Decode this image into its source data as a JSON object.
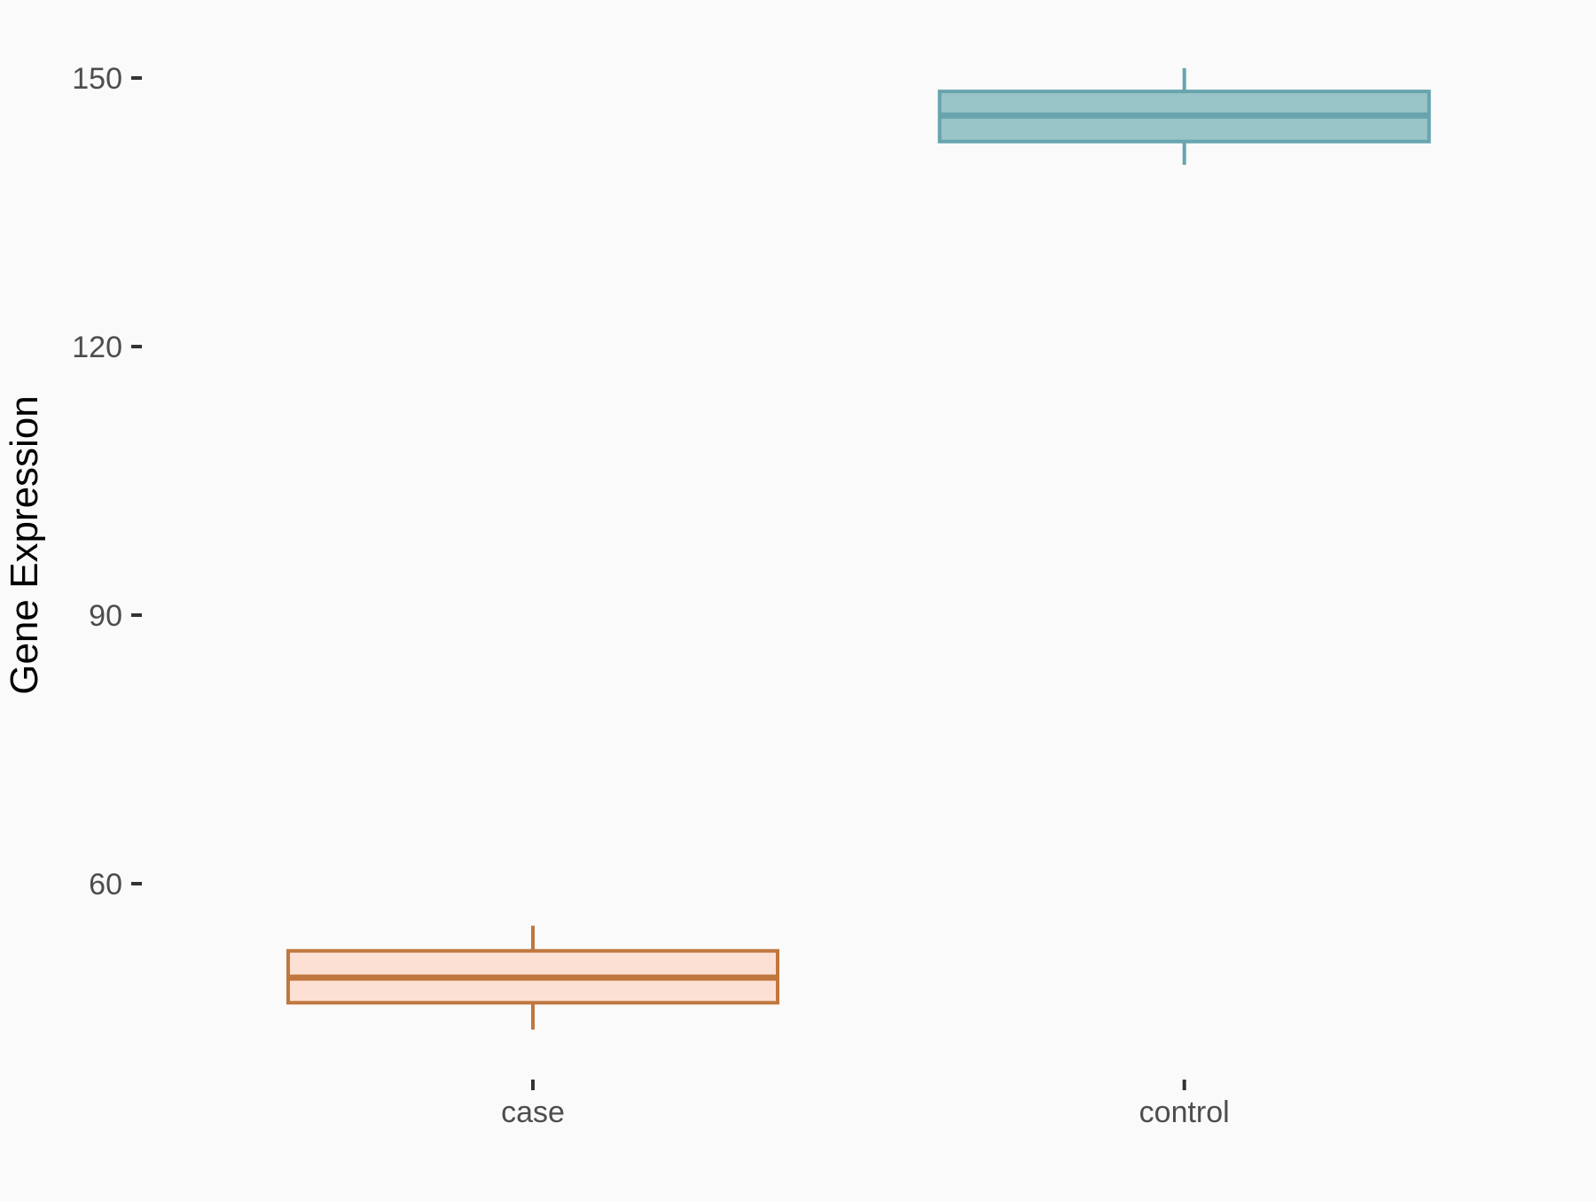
{
  "chart_data": {
    "type": "boxplot",
    "title": "",
    "xlabel": "",
    "ylabel": "Gene Expression",
    "categories": [
      "case",
      "control"
    ],
    "y_ticks": [
      60,
      90,
      120,
      150
    ],
    "ylim": [
      38,
      157
    ],
    "grid": false,
    "legend": false,
    "orientation": "vertical",
    "series": [
      {
        "name": "case",
        "whisker_low": 43.7,
        "q1": 46.7,
        "median": 49.5,
        "q3": 52.5,
        "whisker_high": 55.3,
        "fill": "#fde0d4",
        "stroke": "#c0773e"
      },
      {
        "name": "control",
        "whisker_low": 140.3,
        "q1": 142.9,
        "median": 145.8,
        "q3": 148.5,
        "whisker_high": 151.1,
        "fill": "#99c4c8",
        "stroke": "#67a4ae"
      }
    ]
  },
  "style": {
    "background": "#fafafa",
    "axis_text_color": "#4d4d4d",
    "axis_title_color": "#000000",
    "tick_mark_color": "#333333"
  }
}
